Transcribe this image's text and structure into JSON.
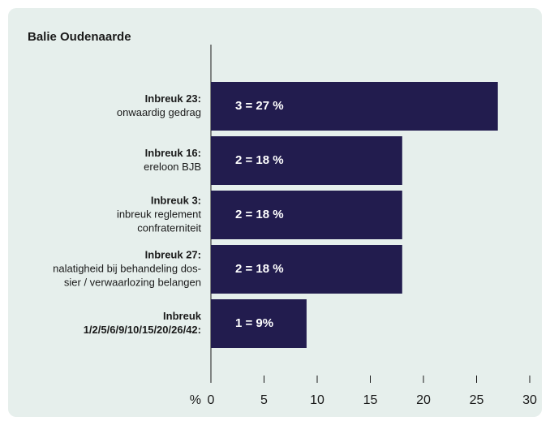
{
  "chart_data": {
    "type": "bar",
    "orientation": "horizontal",
    "title": "Balie Oudenaarde",
    "categories": [
      [
        "Inbreuk 23:"
      ],
      [
        "Inbreuk 16:"
      ],
      [
        "Inbreuk 3:"
      ],
      [
        "Inbreuk 27:"
      ],
      [
        "Inbreuk",
        "1/2/5/6/9/10/15/20/26/42:"
      ]
    ],
    "descriptions": [
      [
        "onwaardig gedrag"
      ],
      [
        "ereloon BJB"
      ],
      [
        "inbreuk reglement",
        "confraterniteit"
      ],
      [
        "nalatigheid bij behandeling dos-",
        "sier / verwaarlozing belangen"
      ],
      []
    ],
    "values": [
      27,
      18,
      18,
      18,
      9
    ],
    "value_labels": [
      "3 = 27 %",
      "2 = 18 %",
      "2 = 18 %",
      "2 = 18 %",
      "1 = 9%"
    ],
    "color": "#221c4e",
    "xlabel": "%",
    "xlim": [
      0,
      30
    ],
    "xticks": [
      0,
      5,
      10,
      15,
      20,
      25,
      30
    ]
  }
}
